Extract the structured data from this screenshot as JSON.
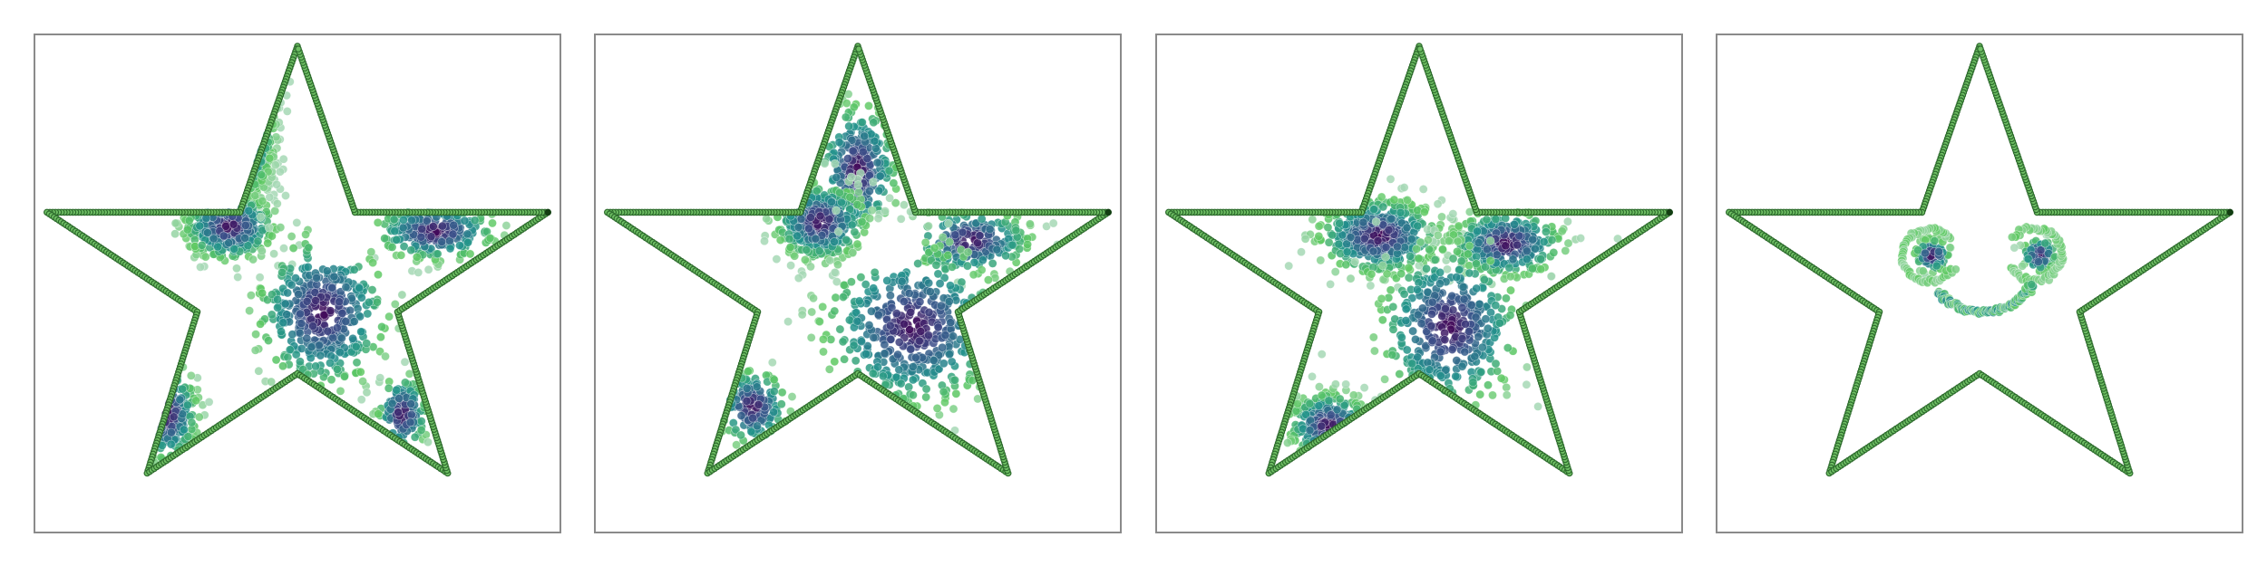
{
  "figure": {
    "panel_count": 4
  },
  "colors": {
    "outline_fill": "#6fbf64",
    "outline_edge": "#2d6b2d",
    "outline_vertex_dark": "#123d12",
    "frame": "#8a8a8a",
    "scale": [
      "#440154",
      "#3b528b",
      "#21918c",
      "#5ec962",
      "#a6d8b5"
    ]
  },
  "chart_data": [
    {
      "type": "scatter",
      "title": "",
      "xlabel": "",
      "ylabel": "",
      "grid": false,
      "legend": "none",
      "xlim": [
        -1.05,
        1.05
      ],
      "ylim": [
        -1.05,
        1.05
      ],
      "series": [
        {
          "kind": "outline",
          "vertices": [
            [
              0,
              1
            ],
            [
              -1,
              0.3
            ],
            [
              -0.6,
              -0.8
            ],
            [
              0.6,
              -0.8
            ],
            [
              1,
              0.3
            ]
          ],
          "inner_vertices": [
            [
              -0.23,
              0.3
            ],
            [
              -0.4,
              -0.12
            ],
            [
              0,
              -0.38
            ],
            [
              0.4,
              -0.12
            ],
            [
              0.23,
              0.3
            ]
          ]
        },
        {
          "kind": "density",
          "clusters": [
            {
              "center": [
                -0.2,
                0.64
              ],
              "spread": [
                0.05,
                0.13
              ],
              "count": 220
            },
            {
              "center": [
                -0.27,
                0.24
              ],
              "spread": [
                0.09,
                0.07
              ],
              "count": 360
            },
            {
              "center": [
                0.55,
                0.22
              ],
              "spread": [
                0.12,
                0.06
              ],
              "count": 240
            },
            {
              "center": [
                0.1,
                -0.12
              ],
              "spread": [
                0.13,
                0.16
              ],
              "count": 420
            },
            {
              "center": [
                -0.52,
                -0.55
              ],
              "spread": [
                0.06,
                0.1
              ],
              "count": 170
            },
            {
              "center": [
                0.42,
                -0.55
              ],
              "spread": [
                0.05,
                0.08
              ],
              "count": 120
            }
          ],
          "holes": [
            {
              "center": [
                0.17,
                0.19
              ],
              "radius": 0.13
            },
            {
              "center": [
                -0.35,
                -0.22
              ],
              "radius": 0.16
            }
          ]
        }
      ]
    },
    {
      "type": "scatter",
      "title": "",
      "xlabel": "",
      "ylabel": "",
      "grid": false,
      "legend": "none",
      "xlim": [
        -1.05,
        1.05
      ],
      "ylim": [
        -1.05,
        1.05
      ],
      "series": [
        {
          "kind": "outline",
          "vertices": [
            [
              0,
              1
            ],
            [
              -1,
              0.3
            ],
            [
              -0.6,
              -0.8
            ],
            [
              0.6,
              -0.8
            ],
            [
              1,
              0.3
            ]
          ],
          "inner_vertices": [
            [
              -0.23,
              0.3
            ],
            [
              -0.4,
              -0.12
            ],
            [
              0,
              -0.38
            ],
            [
              0.4,
              -0.12
            ],
            [
              0.23,
              0.3
            ]
          ]
        },
        {
          "kind": "density",
          "clusters": [
            {
              "center": [
                0.0,
                0.48
              ],
              "spread": [
                0.08,
                0.14
              ],
              "count": 260
            },
            {
              "center": [
                -0.15,
                0.26
              ],
              "spread": [
                0.09,
                0.08
              ],
              "count": 380
            },
            {
              "center": [
                0.45,
                0.18
              ],
              "spread": [
                0.12,
                0.07
              ],
              "count": 200
            },
            {
              "center": [
                0.22,
                -0.18
              ],
              "spread": [
                0.18,
                0.17
              ],
              "count": 430
            },
            {
              "center": [
                -0.42,
                -0.52
              ],
              "spread": [
                0.07,
                0.08
              ],
              "count": 150
            }
          ],
          "holes": [
            {
              "center": [
                0.13,
                0.15
              ],
              "radius": 0.12
            },
            {
              "center": [
                -0.23,
                -0.35
              ],
              "radius": 0.1
            }
          ]
        }
      ]
    },
    {
      "type": "scatter",
      "title": "",
      "xlabel": "",
      "ylabel": "",
      "grid": false,
      "legend": "none",
      "xlim": [
        -1.05,
        1.05
      ],
      "ylim": [
        -1.05,
        1.05
      ],
      "series": [
        {
          "kind": "outline",
          "vertices": [
            [
              0,
              1
            ],
            [
              -1,
              0.3
            ],
            [
              -0.6,
              -0.8
            ],
            [
              0.6,
              -0.8
            ],
            [
              1,
              0.3
            ]
          ],
          "inner_vertices": [
            [
              -0.23,
              0.3
            ],
            [
              -0.4,
              -0.12
            ],
            [
              0,
              -0.38
            ],
            [
              0.4,
              -0.12
            ],
            [
              0.23,
              0.3
            ]
          ]
        },
        {
          "kind": "density",
          "clusters": [
            {
              "center": [
                -0.16,
                0.2
              ],
              "spread": [
                0.12,
                0.08
              ],
              "count": 520
            },
            {
              "center": [
                0.35,
                0.17
              ],
              "spread": [
                0.11,
                0.07
              ],
              "count": 320
            },
            {
              "center": [
                0.12,
                -0.18
              ],
              "spread": [
                0.14,
                0.17
              ],
              "count": 380
            },
            {
              "center": [
                -0.36,
                -0.6
              ],
              "spread": [
                0.08,
                0.07
              ],
              "count": 240
            }
          ],
          "holes": []
        }
      ]
    },
    {
      "type": "scatter",
      "title": "",
      "xlabel": "",
      "ylabel": "",
      "grid": false,
      "legend": "none",
      "xlim": [
        -1.05,
        1.05
      ],
      "ylim": [
        -1.05,
        1.05
      ],
      "series": [
        {
          "kind": "outline",
          "vertices": [
            [
              0,
              1
            ],
            [
              -1,
              0.3
            ],
            [
              -0.6,
              -0.8
            ],
            [
              0.6,
              -0.8
            ],
            [
              1,
              0.3
            ]
          ],
          "inner_vertices": [
            [
              -0.23,
              0.3
            ],
            [
              -0.4,
              -0.12
            ],
            [
              0,
              -0.38
            ],
            [
              0.4,
              -0.12
            ],
            [
              0.23,
              0.3
            ]
          ]
        },
        {
          "kind": "smiley",
          "eyes": [
            {
              "center": [
                -0.19,
                0.12
              ],
              "spread": [
                0.035,
                0.035
              ],
              "count": 90
            },
            {
              "center": [
                0.24,
                0.12
              ],
              "spread": [
                0.035,
                0.035
              ],
              "count": 90
            }
          ],
          "eye_rings": [
            {
              "center": [
                -0.2,
                0.12
              ],
              "radius": 0.11,
              "arc_deg": [
                40,
                330
              ],
              "count": 60
            },
            {
              "center": [
                0.22,
                0.12
              ],
              "radius": 0.11,
              "arc_deg": [
                -150,
                140
              ],
              "count": 60
            }
          ],
          "mouth": {
            "center": [
              0.01,
              -0.12
            ],
            "radius": 0.23,
            "arc_deg": [
              -140,
              -30
            ],
            "count": 120
          }
        }
      ]
    }
  ]
}
